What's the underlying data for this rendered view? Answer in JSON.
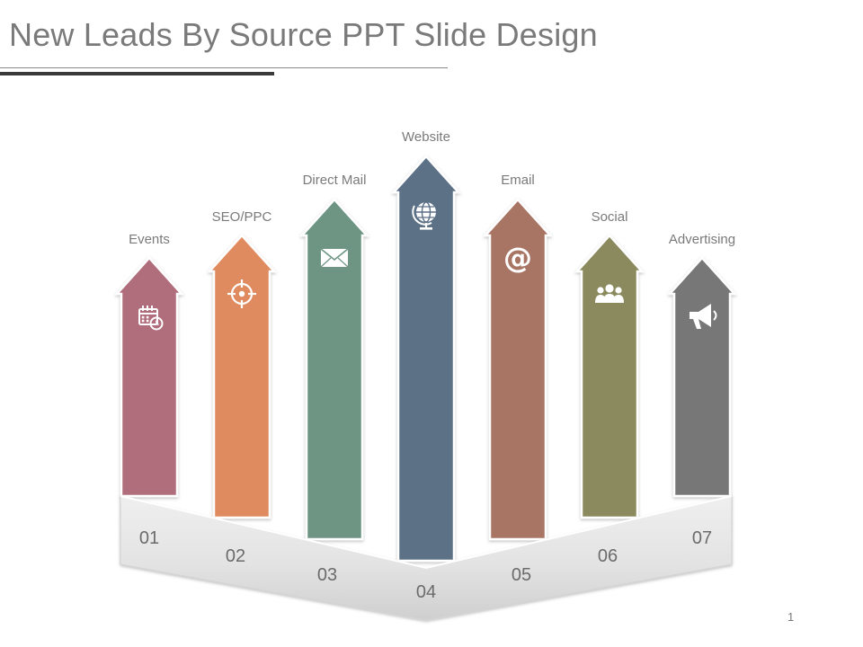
{
  "slide": {
    "title": "New Leads By Source PPT Slide Design",
    "page_number": "1"
  },
  "sources": [
    {
      "label": "Events",
      "number": "01",
      "color": "#b06d7b",
      "icon": "calendar-icon"
    },
    {
      "label": "SEO/PPC",
      "number": "02",
      "color": "#e08a5e",
      "icon": "target-icon"
    },
    {
      "label": "Direct Mail",
      "number": "03",
      "color": "#6e9484",
      "icon": "envelope-icon"
    },
    {
      "label": "Website",
      "number": "04",
      "color": "#5b6f86",
      "icon": "globe-icon"
    },
    {
      "label": "Email",
      "number": "05",
      "color": "#a87565",
      "icon": "at-sign-icon"
    },
    {
      "label": "Social",
      "number": "06",
      "color": "#8b8a5e",
      "icon": "people-icon"
    },
    {
      "label": "Advertising",
      "number": "07",
      "color": "#777777",
      "icon": "megaphone-icon"
    }
  ]
}
